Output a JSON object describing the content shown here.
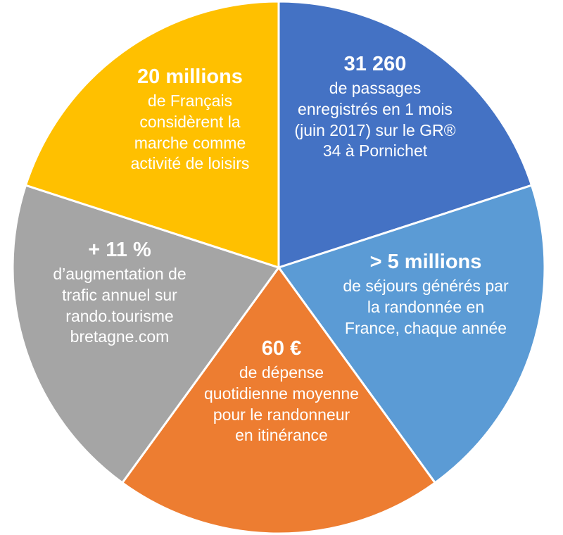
{
  "chart_data": {
    "type": "pie",
    "slices": [
      {
        "label": "20 millions",
        "text": "de Français considèrent la marche comme activité de loisirs",
        "value": 20,
        "color": "#4472C4"
      },
      {
        "label": "31 260",
        "text": "de passages enregistrés en 1 mois (juin 2017) sur le GR® 34 à Pornichet",
        "value": 20,
        "color": "#5B9BD5"
      },
      {
        "label": "> 5 millions",
        "text": "de séjours générés par la randonnée en France, chaque année",
        "value": 20,
        "color": "#ED7D31"
      },
      {
        "label": "60 €",
        "text": "de dépense quotidienne moyenne pour le randonneur en itinérance",
        "value": 20,
        "color": "#A5A5A5"
      },
      {
        "label": "+ 11 %",
        "text": "d’augmentation de trafic annuel sur rando.tourisme bretagne.com",
        "value": 20,
        "color": "#FFC000"
      }
    ]
  }
}
